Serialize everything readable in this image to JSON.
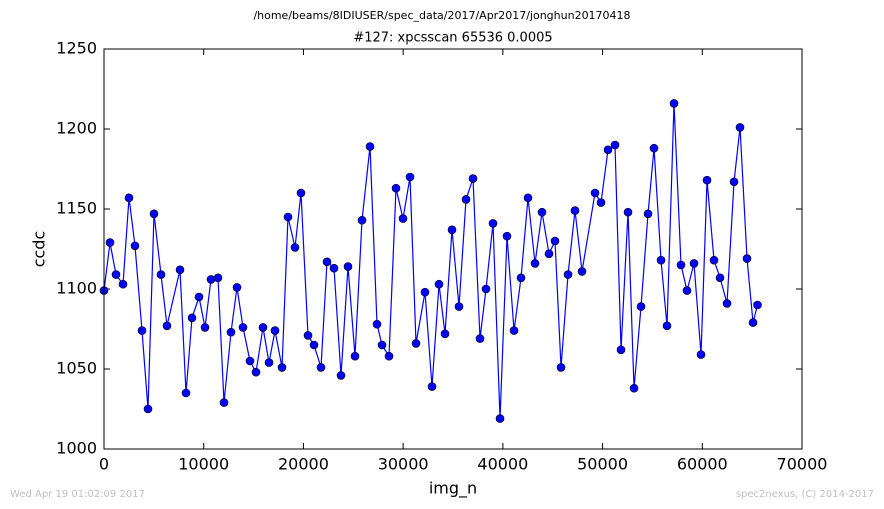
{
  "chart_data": {
    "type": "line",
    "title": "/home/beams/8IDIUSER/spec_data/2017/Apr2017/jonghun20170418",
    "subtitle": "#127: xpcsscan 65536 0.0005",
    "x_label": "img_n",
    "y_label": "ccdc",
    "annotations": [
      "Wed Apr 19 01:02:09 2017",
      "spec2nexus, (C) 2014-2017"
    ],
    "color": "#0000ff",
    "x": [
      0,
      602,
      1203,
      1906,
      2507,
      3109,
      3811,
      4413,
      5015,
      5717,
      6318,
      7622,
      8224,
      8826,
      9528,
      10129,
      10731,
      11433,
      12035,
      12737,
      13339,
      13940,
      14642,
      15244,
      15946,
      16548,
      17150,
      17852,
      18453,
      19155,
      19757,
      20459,
      21061,
      21763,
      22365,
      23067,
      23769,
      24471,
      25173,
      25875,
      26677,
      27379,
      27881,
      28583,
      29285,
      29987,
      30689,
      31291,
      32193,
      32895,
      33597,
      34199,
      34901,
      35603,
      36305,
      37007,
      37709,
      38311,
      39013,
      39715,
      40417,
      41119,
      41821,
      42523,
      43225,
      43927,
      44629,
      45231,
      45833,
      46535,
      47237,
      47939,
      49243,
      49844,
      50546,
      51248,
      51850,
      52552,
      53154,
      53856,
      54558,
      55160,
      55862,
      56463,
      57165,
      57867,
      58469,
      59171,
      59873,
      60475,
      61177,
      61779,
      62481,
      63183,
      63784,
      64486,
      65088,
      65536
    ],
    "values": [
      1099,
      1129,
      1109,
      1103,
      1157,
      1127,
      1074,
      1025,
      1147,
      1109,
      1077,
      1112,
      1035,
      1082,
      1095,
      1076,
      1106,
      1107,
      1029,
      1073,
      1101,
      1076,
      1055,
      1048,
      1076,
      1054,
      1074,
      1051,
      1145,
      1126,
      1160,
      1071,
      1065,
      1051,
      1117,
      1113,
      1046,
      1114,
      1058,
      1143,
      1189,
      1078,
      1065,
      1058,
      1163,
      1144,
      1170,
      1066,
      1098,
      1039,
      1103,
      1072,
      1137,
      1089,
      1156,
      1169,
      1069,
      1100,
      1141,
      1019,
      1133,
      1074,
      1107,
      1157,
      1116,
      1148,
      1122,
      1130,
      1051,
      1109,
      1149,
      1111,
      1160,
      1154,
      1187,
      1190,
      1062,
      1148,
      1038,
      1089,
      1147,
      1188,
      1118,
      1077,
      1216,
      1115,
      1099,
      1116,
      1059,
      1168,
      1118,
      1107,
      1091,
      1167,
      1201,
      1119,
      1079,
      1090
    ],
    "xlim": [
      0,
      70000
    ],
    "ylim": [
      1000,
      1250
    ],
    "xticks": [
      0,
      10000,
      20000,
      30000,
      40000,
      50000,
      60000,
      70000
    ],
    "yticks": [
      1000,
      1050,
      1100,
      1150,
      1200,
      1250
    ],
    "grid": false
  }
}
